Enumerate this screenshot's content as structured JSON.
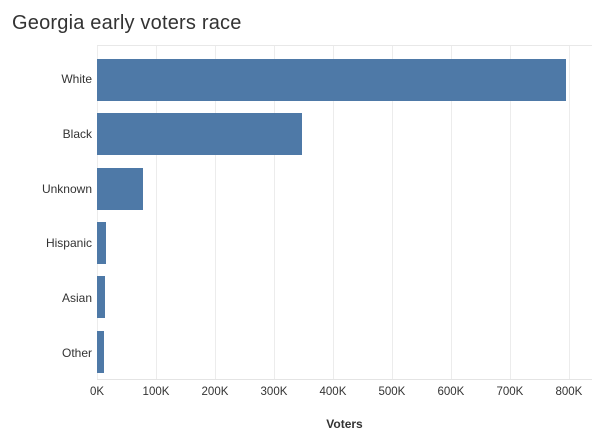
{
  "title": "Georgia early voters race",
  "colors": {
    "bar": "#4e79a7",
    "text": "#333333",
    "gridline": "#ececec",
    "plot_border": "#e8e8e8",
    "background": "#ffffff"
  },
  "chart_data": {
    "type": "bar",
    "orientation": "horizontal",
    "title": "Georgia early voters race",
    "xlabel": "Voters",
    "ylabel": "",
    "categories": [
      "White",
      "Black",
      "Unknown",
      "Hispanic",
      "Asian",
      "Other"
    ],
    "values": [
      795000,
      348000,
      78000,
      15000,
      14000,
      12000
    ],
    "xlim": [
      0,
      800000
    ],
    "xticks": [
      {
        "value": 0,
        "label": "0K"
      },
      {
        "value": 100000,
        "label": "100K"
      },
      {
        "value": 200000,
        "label": "200K"
      },
      {
        "value": 300000,
        "label": "300K"
      },
      {
        "value": 400000,
        "label": "400K"
      },
      {
        "value": 500000,
        "label": "500K"
      },
      {
        "value": 600000,
        "label": "600K"
      },
      {
        "value": 700000,
        "label": "700K"
      },
      {
        "value": 800000,
        "label": "800K"
      }
    ],
    "grid": "vertical",
    "legend": "none",
    "bar_color": "#4e79a7"
  }
}
